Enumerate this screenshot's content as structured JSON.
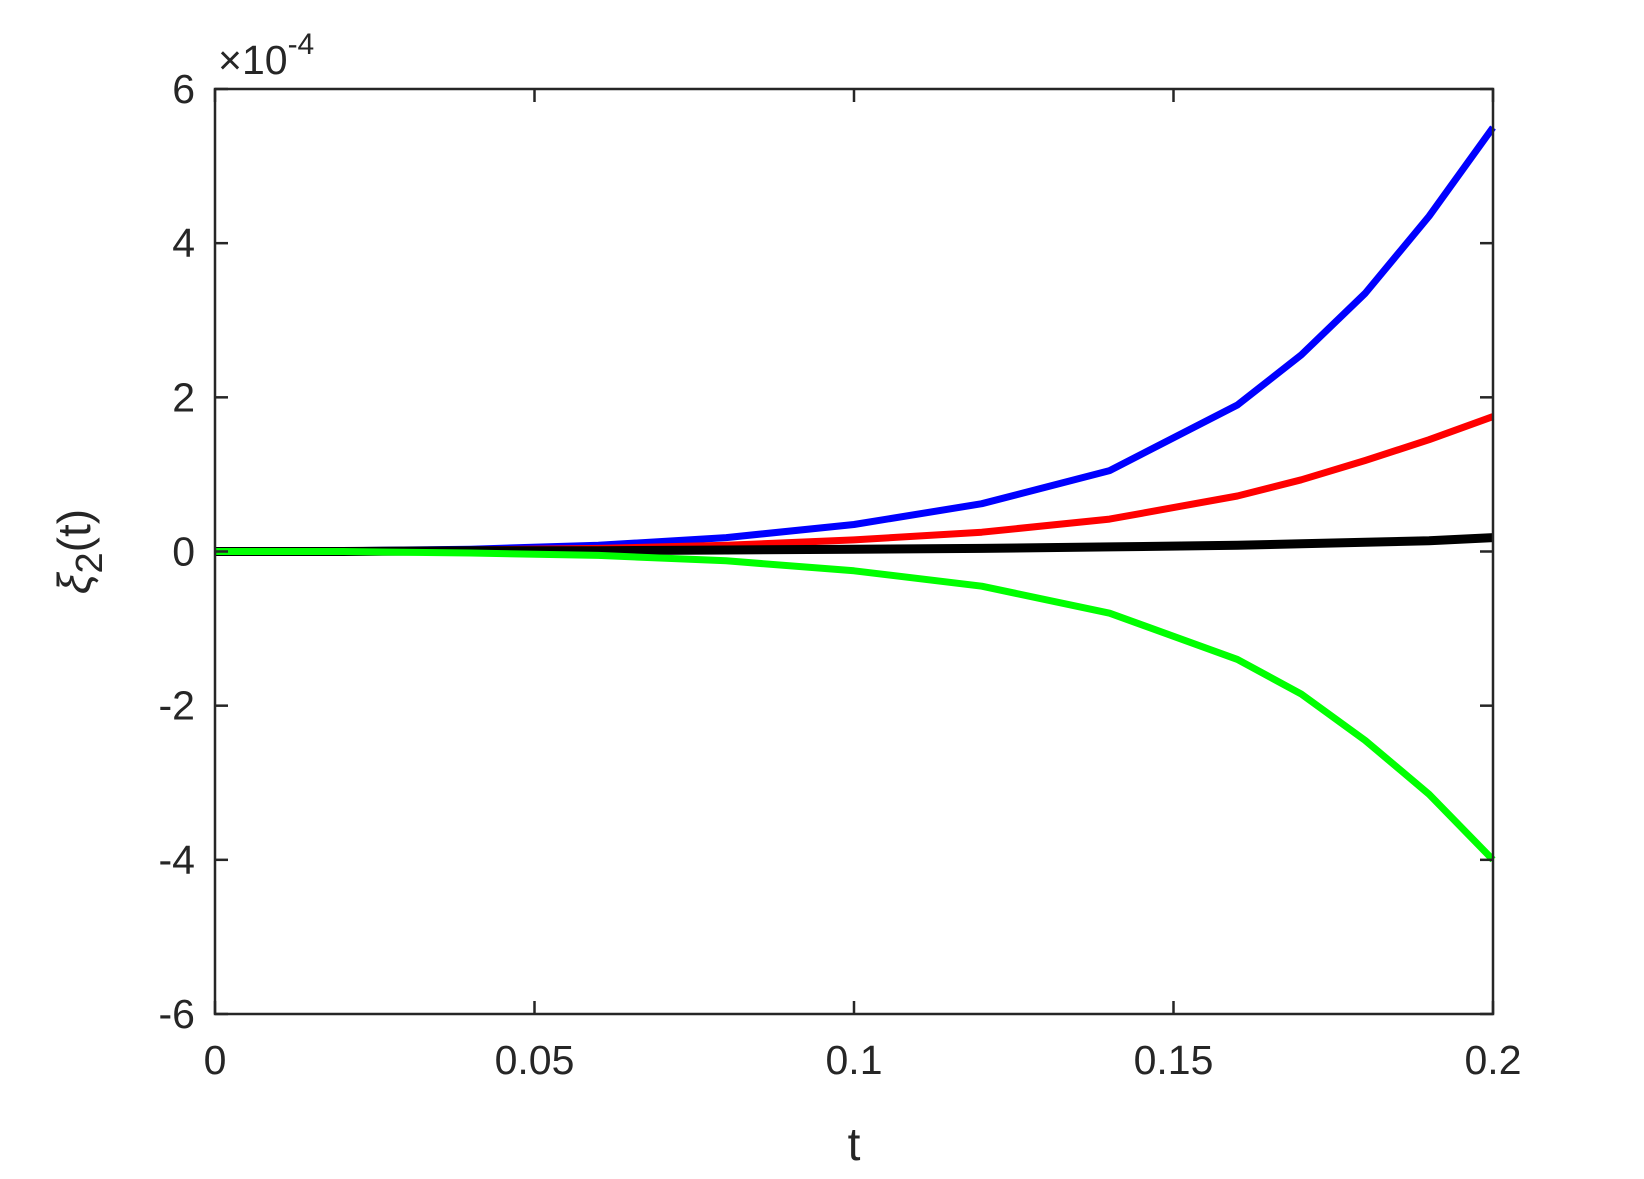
{
  "chart_data": {
    "type": "line",
    "xlabel": "t",
    "ylabel": {
      "symbol": "ξ",
      "subscript": "2",
      "suffix": "(t)"
    },
    "y_exponent": {
      "prefix": "×10",
      "power": "-4"
    },
    "xlim": [
      0,
      0.2
    ],
    "ylim": [
      -6,
      6
    ],
    "x_ticks": [
      {
        "value": 0,
        "label": "0"
      },
      {
        "value": 0.05,
        "label": "0.05"
      },
      {
        "value": 0.1,
        "label": "0.1"
      },
      {
        "value": 0.15,
        "label": "0.15"
      },
      {
        "value": 0.2,
        "label": "0.2"
      }
    ],
    "y_ticks": [
      {
        "value": -6,
        "label": "-6"
      },
      {
        "value": -4,
        "label": "-4"
      },
      {
        "value": -2,
        "label": "-2"
      },
      {
        "value": 0,
        "label": "0"
      },
      {
        "value": 2,
        "label": "2"
      },
      {
        "value": 4,
        "label": "4"
      },
      {
        "value": 6,
        "label": "6"
      }
    ],
    "grid": false,
    "legend": false,
    "x": [
      0,
      0.02,
      0.04,
      0.06,
      0.08,
      0.1,
      0.12,
      0.14,
      0.16,
      0.17,
      0.18,
      0.19,
      0.2
    ],
    "series": [
      {
        "color": "#0000ff",
        "values": [
          0.0,
          0.01,
          0.03,
          0.08,
          0.18,
          0.35,
          0.62,
          1.05,
          1.9,
          2.55,
          3.35,
          4.35,
          5.5
        ]
      },
      {
        "color": "#ff0000",
        "values": [
          0.0,
          0.0,
          0.02,
          0.04,
          0.08,
          0.15,
          0.25,
          0.42,
          0.72,
          0.93,
          1.18,
          1.45,
          1.75
        ]
      },
      {
        "color": "#000000",
        "values": [
          0.0,
          0.0,
          0.01,
          0.01,
          0.02,
          0.03,
          0.04,
          0.06,
          0.08,
          0.1,
          0.12,
          0.14,
          0.18
        ]
      },
      {
        "color": "#00ff00",
        "values": [
          0.0,
          0.0,
          -0.02,
          -0.05,
          -0.12,
          -0.25,
          -0.45,
          -0.8,
          -1.4,
          -1.85,
          -2.45,
          -3.15,
          -4.0
        ]
      }
    ]
  }
}
